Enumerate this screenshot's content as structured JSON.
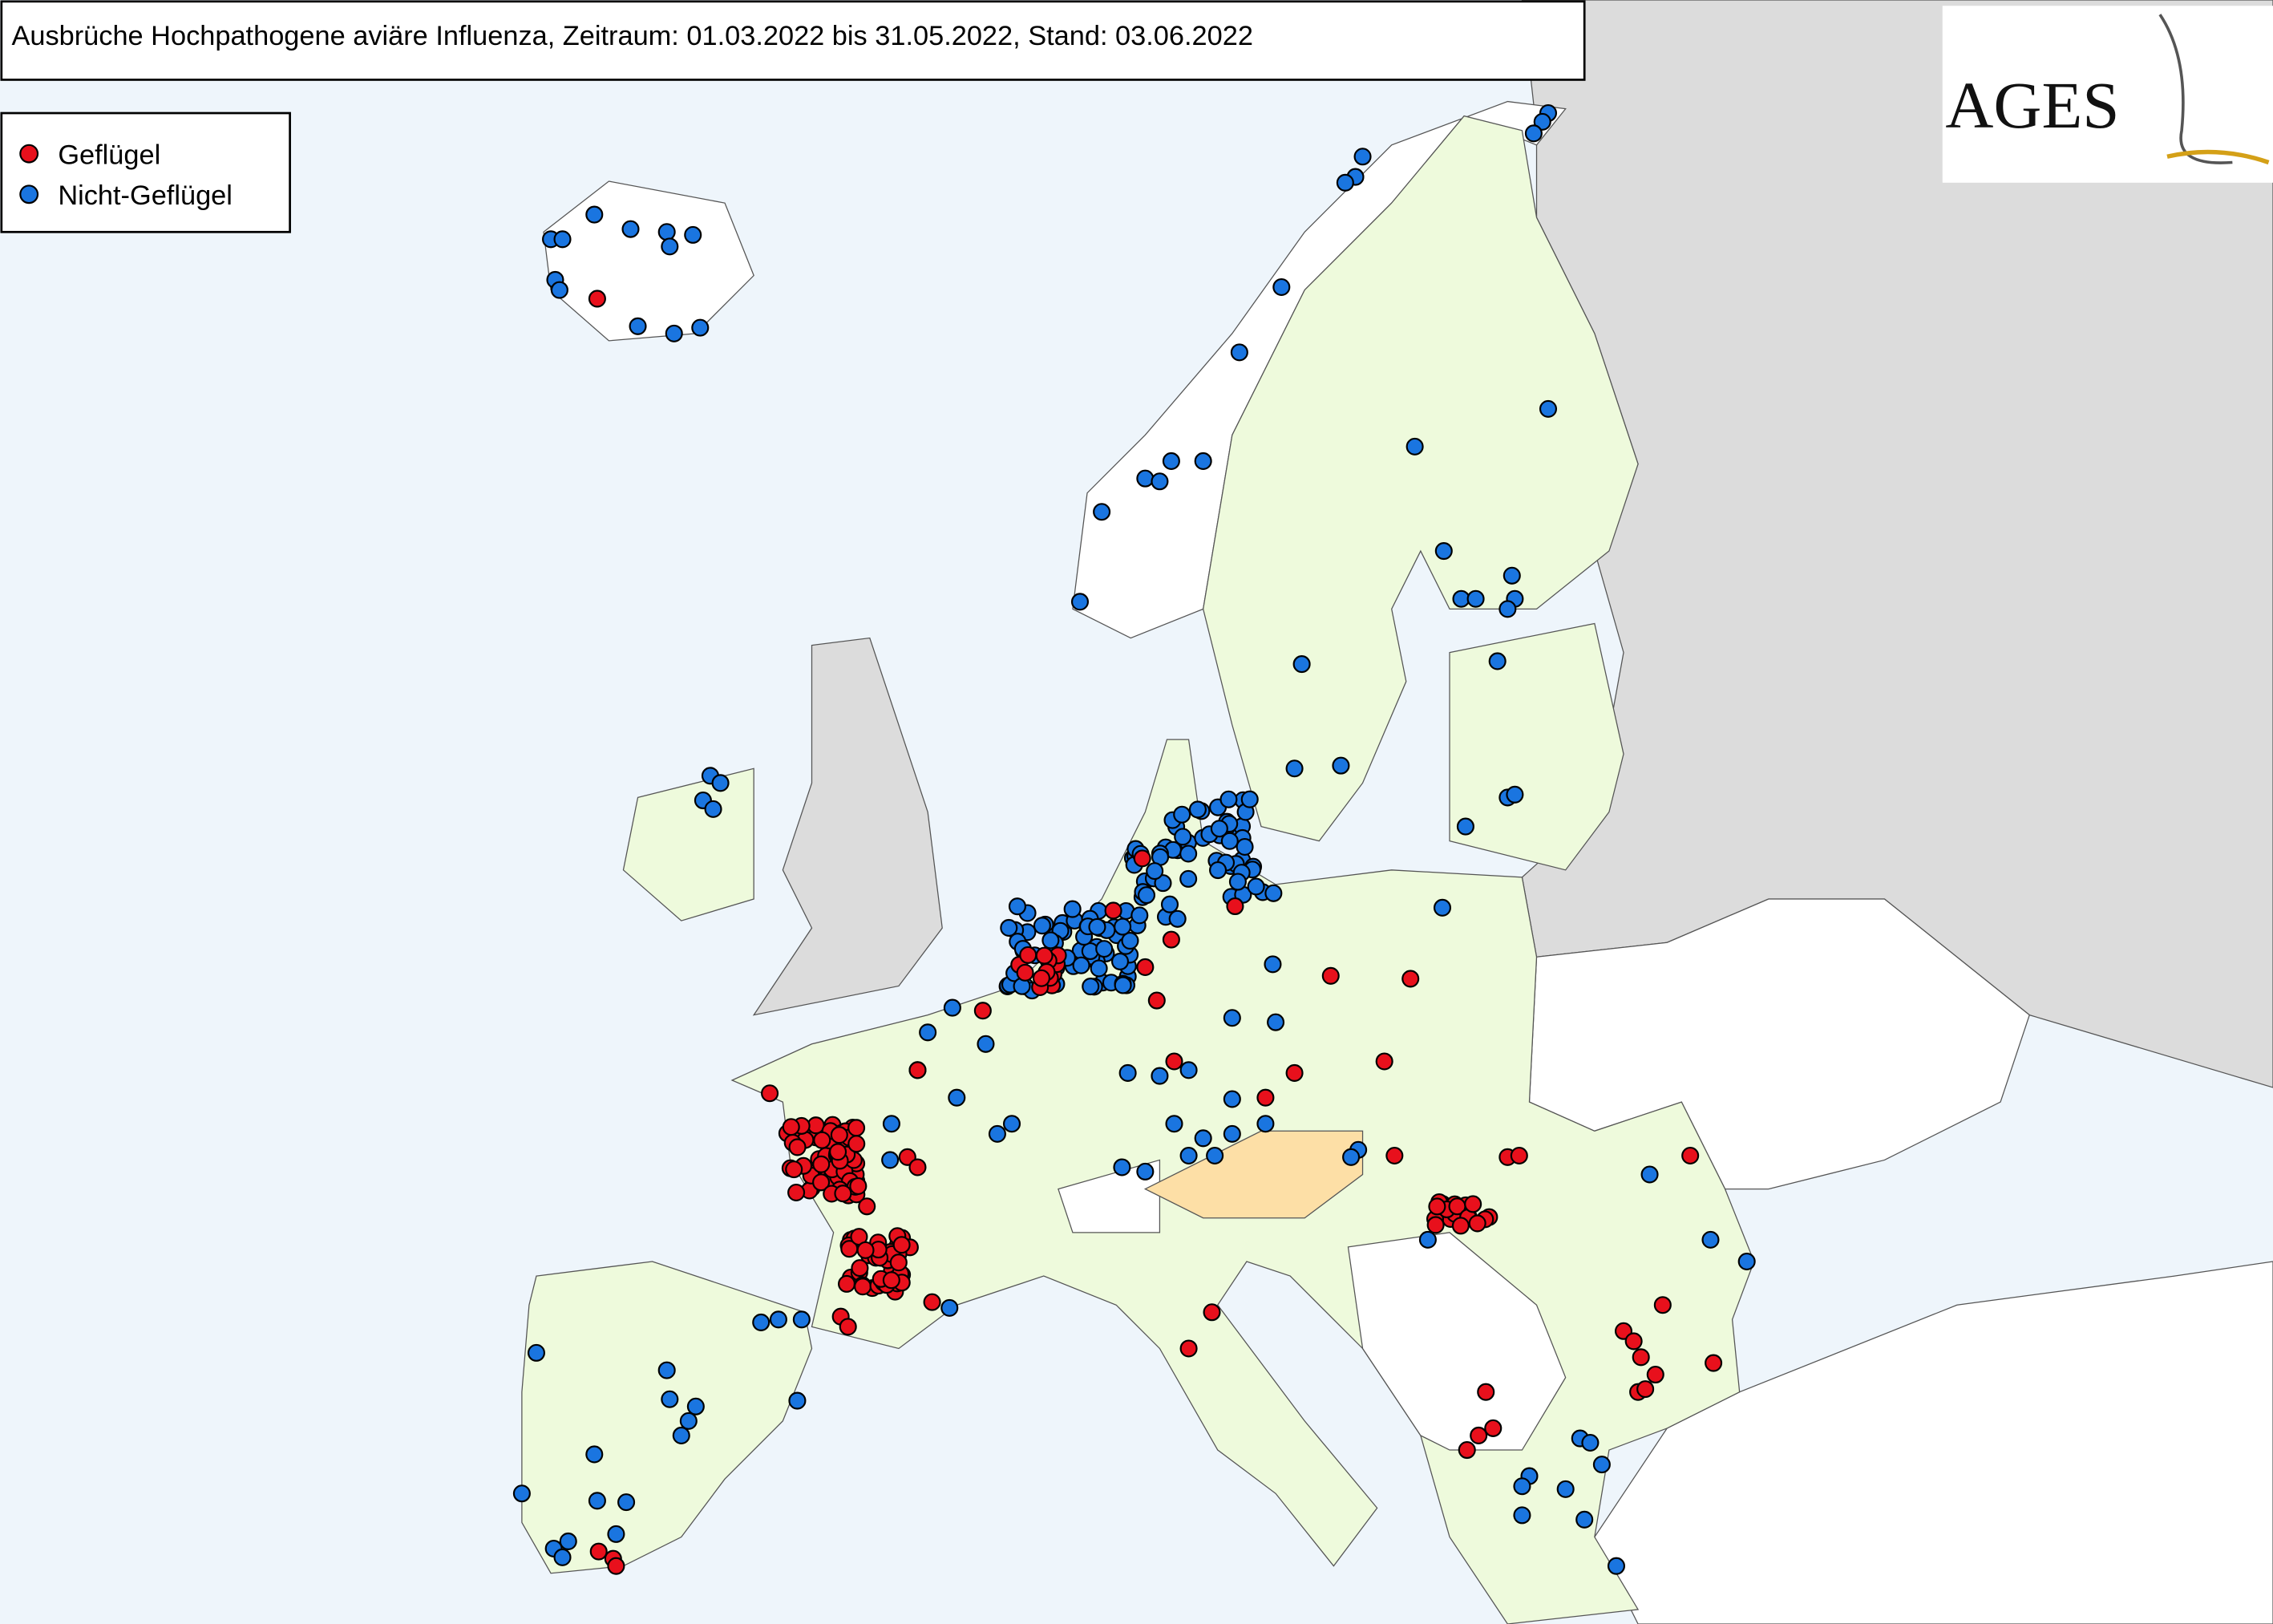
{
  "header": {
    "title": "Ausbrüche Hochpathogene aviäre Influenza, Zeitraum: 01.03.2022 bis 31.05.2022, Stand: 03.06.2022"
  },
  "legend": {
    "items": [
      {
        "label": "Geflügel",
        "color": "#e8101c"
      },
      {
        "label": "Nicht-Geflügel",
        "color": "#1a75e0"
      }
    ]
  },
  "logo": {
    "text": "AGES"
  }
}
